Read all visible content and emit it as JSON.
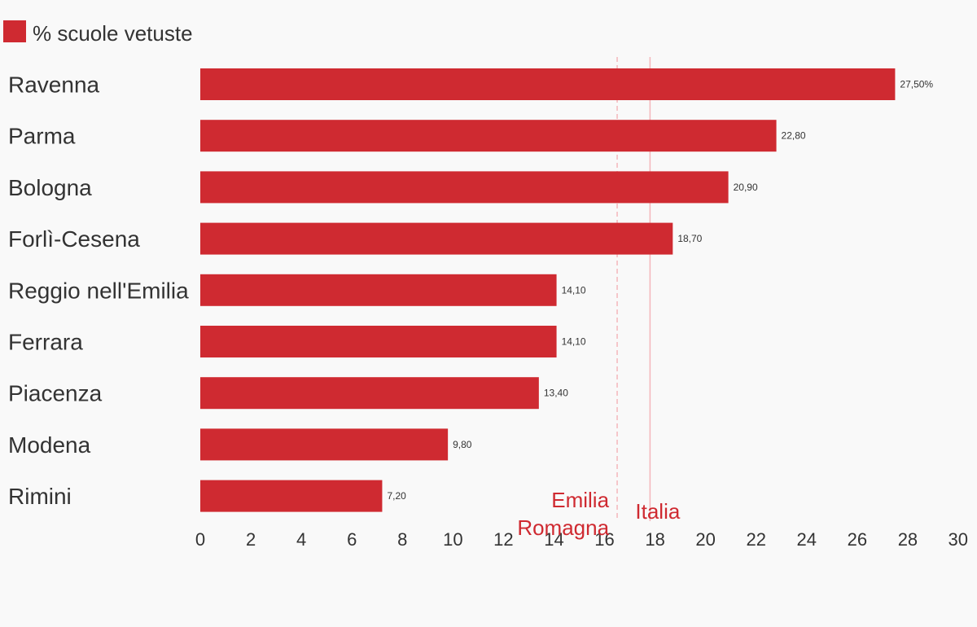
{
  "chart_data": {
    "type": "bar",
    "orientation": "horizontal",
    "series": [
      {
        "name": "% scuole vetuste",
        "color": "#cf2a31",
        "values": [
          27.5,
          22.8,
          20.9,
          18.7,
          14.1,
          14.1,
          13.4,
          9.8,
          7.2
        ]
      }
    ],
    "categories": [
      "Ravenna",
      "Parma",
      "Bologna",
      "Forlì-Cesena",
      "Reggio nell'Emilia",
      "Ferrara",
      "Piacenza",
      "Modena",
      "Rimini"
    ],
    "value_labels": [
      "27,50%",
      "22,80",
      "20,90",
      "18,70",
      "14,10",
      "14,10",
      "13,40",
      "9,80",
      "7,20"
    ],
    "xlim": [
      0,
      30
    ],
    "xticks": [
      0,
      2,
      4,
      6,
      8,
      10,
      12,
      14,
      16,
      18,
      20,
      22,
      24,
      26,
      28,
      30
    ],
    "reference_lines": [
      {
        "label_lines": [
          "Emilia",
          "Romagna"
        ],
        "value": 16.5,
        "style": "dashed",
        "color": "#f4b6bb",
        "label_color": "#cf2a31"
      },
      {
        "label_lines": [
          "Italia"
        ],
        "value": 17.8,
        "style": "solid",
        "color": "#f4b6bb",
        "label_color": "#cf2a31"
      }
    ],
    "legend_position": "top-left",
    "grid": false,
    "title": "",
    "xlabel": "",
    "ylabel": ""
  }
}
